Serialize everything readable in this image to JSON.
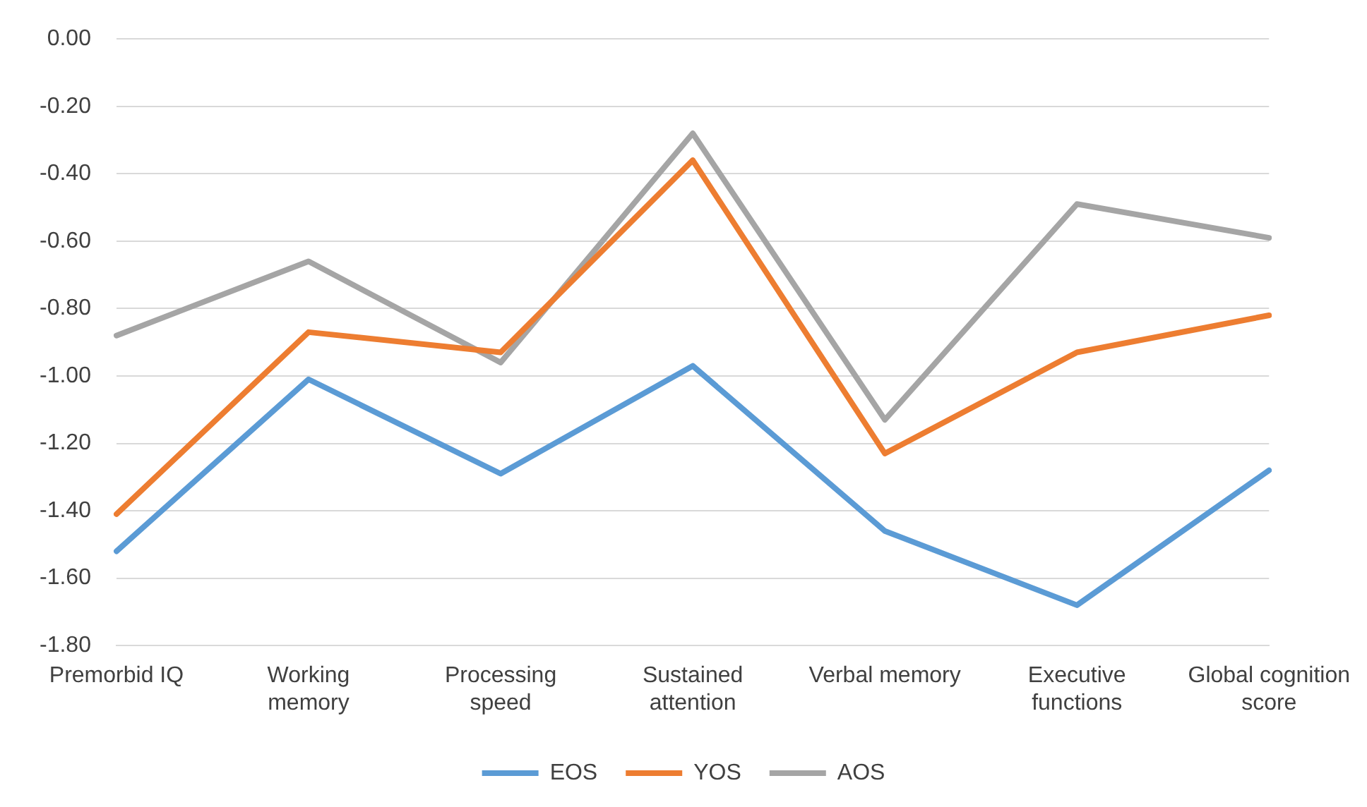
{
  "chart_data": {
    "type": "line",
    "categories": [
      "Premorbid IQ",
      "Working memory",
      "Processing speed",
      "Sustained attention",
      "Verbal memory",
      "Executive functions",
      "Global cognition score"
    ],
    "series": [
      {
        "name": "EOS",
        "color": "#5b9bd5",
        "values": [
          -1.52,
          -1.01,
          -1.29,
          -0.97,
          -1.46,
          -1.68,
          -1.28
        ]
      },
      {
        "name": "YOS",
        "color": "#ed7d31",
        "values": [
          -1.41,
          -0.87,
          -0.93,
          -0.36,
          -1.23,
          -0.93,
          -0.82
        ]
      },
      {
        "name": "AOS",
        "color": "#a5a5a5",
        "values": [
          -0.88,
          -0.66,
          -0.96,
          -0.28,
          -1.13,
          -0.49,
          -0.59
        ]
      }
    ],
    "ylim": [
      -1.8,
      0
    ],
    "yticks": [
      {
        "value": 0,
        "label": "0.00"
      },
      {
        "value": -0.2,
        "label": "-0.20"
      },
      {
        "value": -0.4,
        "label": "-0.40"
      },
      {
        "value": -0.6,
        "label": "-0.60"
      },
      {
        "value": -0.8,
        "label": "-0.80"
      },
      {
        "value": -1,
        "label": "-1.00"
      },
      {
        "value": -1.2,
        "label": "-1.20"
      },
      {
        "value": -1.4,
        "label": "-1.40"
      },
      {
        "value": -1.6,
        "label": "-1.60"
      },
      {
        "value": -1.8,
        "label": "-1.80"
      }
    ],
    "grid": "y",
    "legend": "bottom",
    "marker": "none",
    "line_style": "solid"
  }
}
